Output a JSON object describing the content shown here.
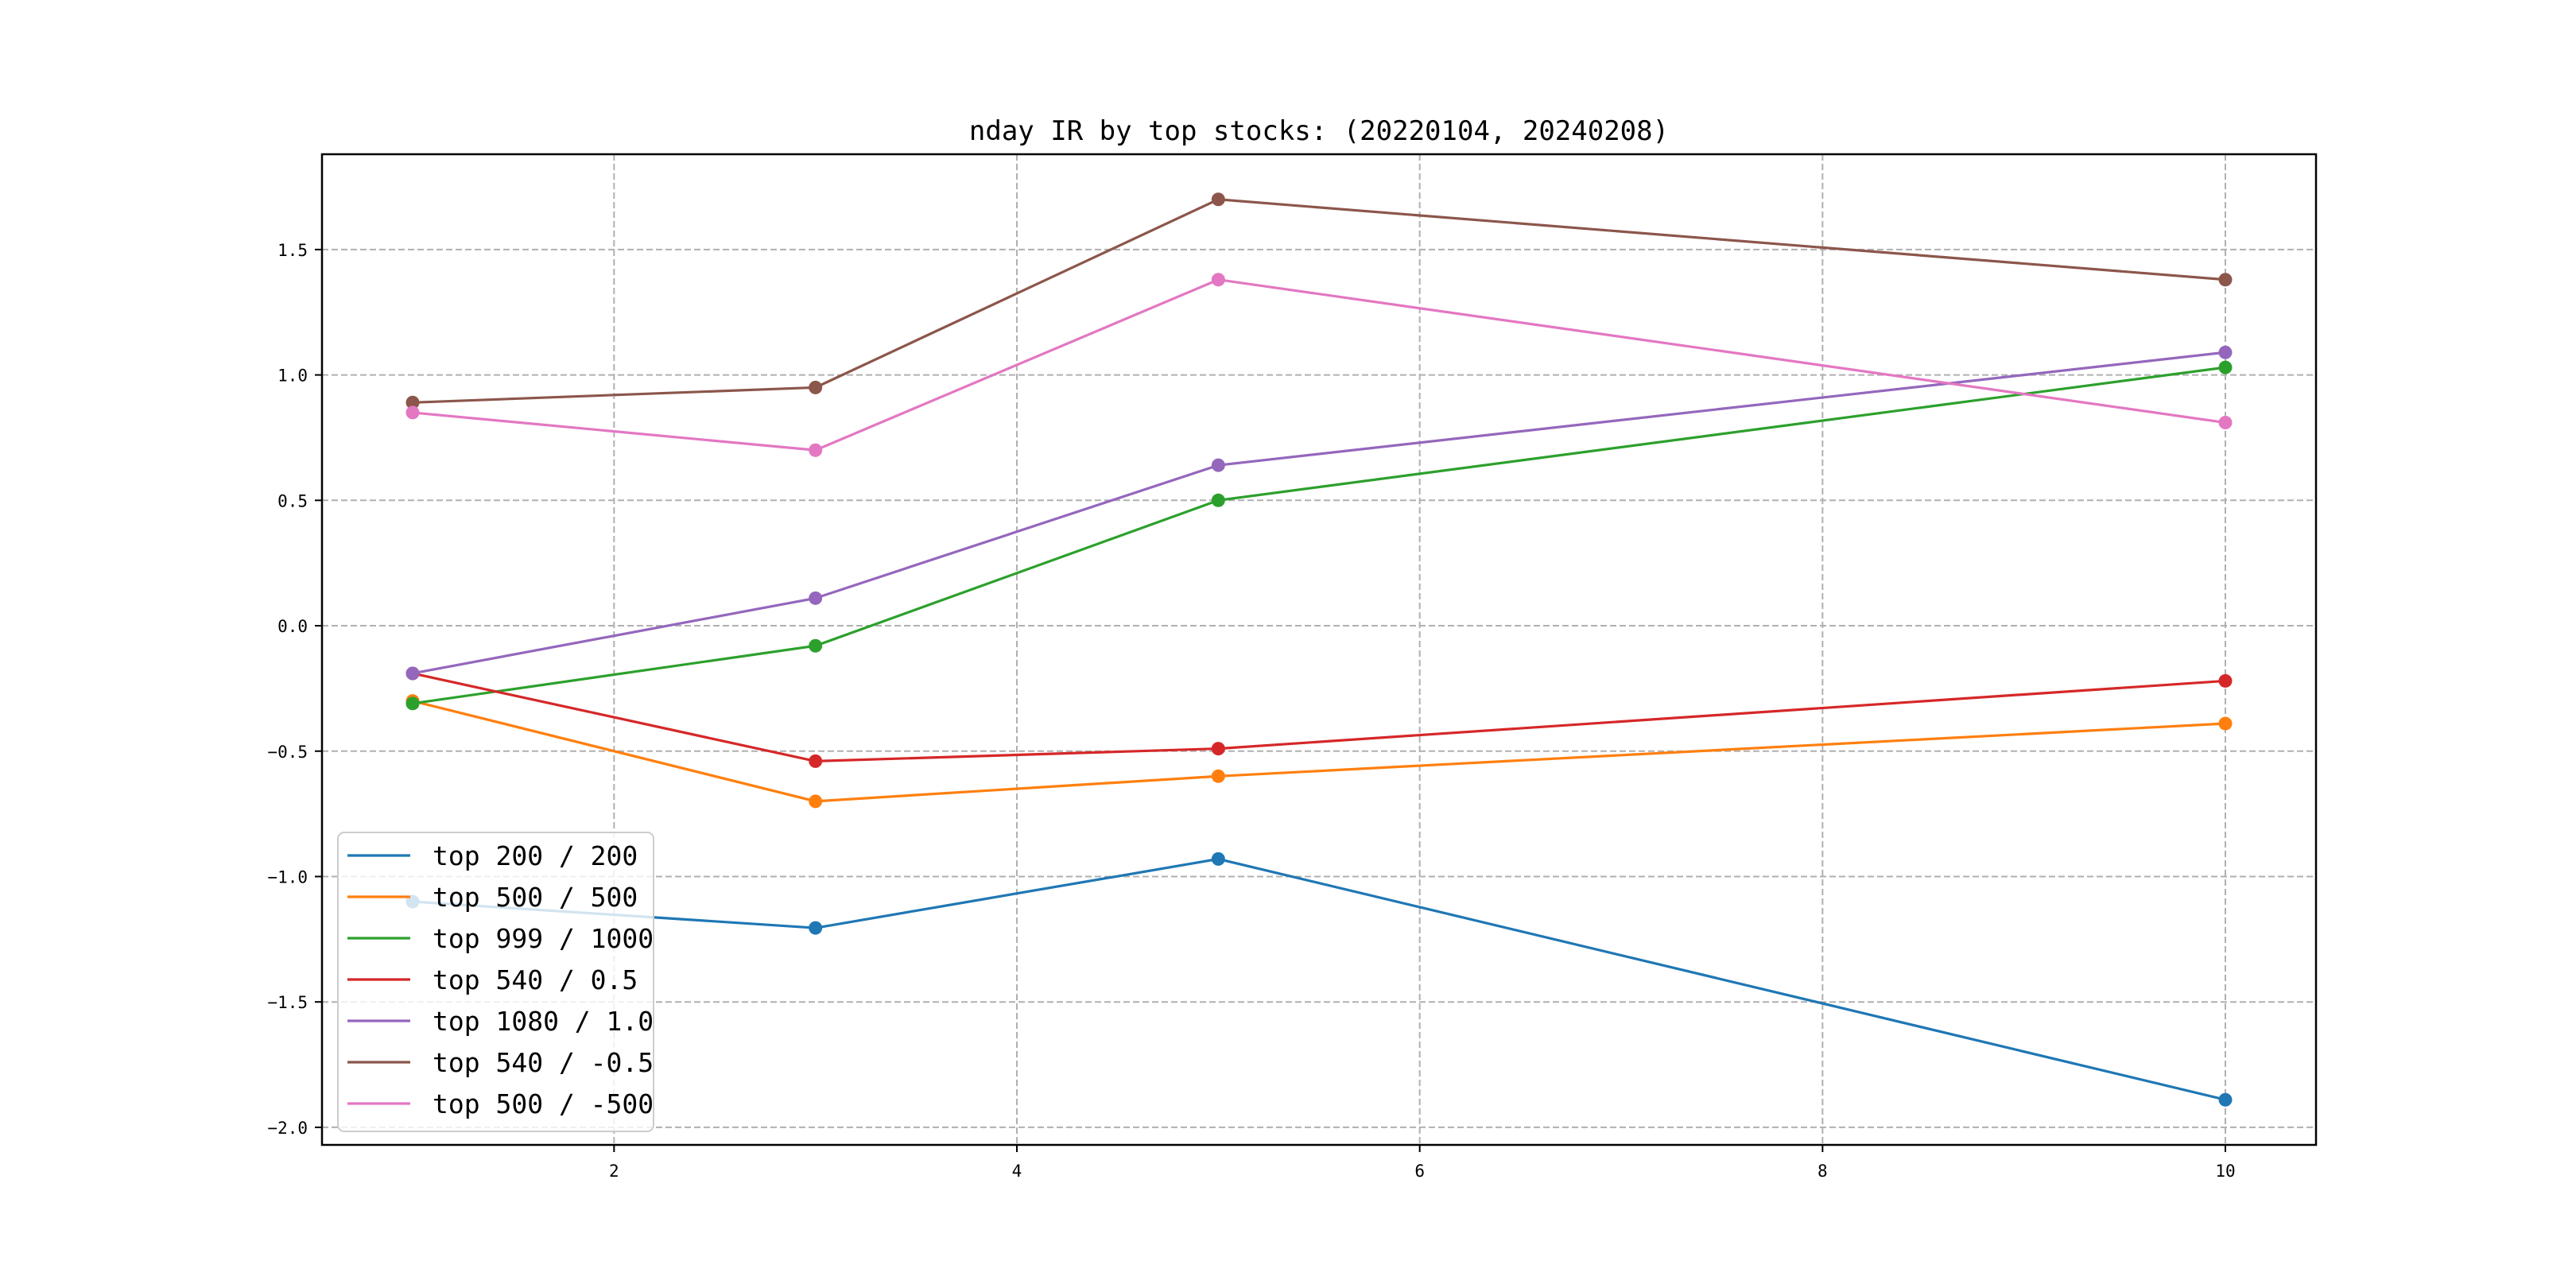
{
  "chart_data": {
    "type": "line",
    "title": "nday IR by top stocks: (20220104, 20240208)",
    "xlabel": "",
    "ylabel": "",
    "x": [
      1,
      3,
      5,
      10
    ],
    "xlim": [
      0.55,
      10.45
    ],
    "ylim": [
      -2.07,
      1.88
    ],
    "xticks": [
      2,
      4,
      6,
      8,
      10
    ],
    "xtick_labels": [
      "2",
      "4",
      "6",
      "8",
      "10"
    ],
    "yticks": [
      -2.0,
      -1.5,
      -1.0,
      -0.5,
      0.0,
      0.5,
      1.0,
      1.5
    ],
    "ytick_labels": [
      "−2.0",
      "−1.5",
      "−1.0",
      "−0.5",
      "0.0",
      "0.5",
      "1.0",
      "1.5"
    ],
    "grid": true,
    "legend_position": "lower-left",
    "series": [
      {
        "name": "top 200 / 200",
        "color": "#1f77b4",
        "values": [
          -1.1,
          -1.205,
          -0.93,
          -1.89
        ]
      },
      {
        "name": "top 500 / 500",
        "color": "#ff7f0e",
        "values": [
          -0.3,
          -0.7,
          -0.6,
          -0.39
        ]
      },
      {
        "name": "top 999 / 1000",
        "color": "#2ca02c",
        "values": [
          -0.31,
          -0.08,
          0.5,
          1.03
        ]
      },
      {
        "name": "top 540 / 0.5",
        "color": "#d62728",
        "values": [
          -0.19,
          -0.54,
          -0.49,
          -0.22
        ]
      },
      {
        "name": "top 1080 / 1.0",
        "color": "#9467bd",
        "values": [
          -0.19,
          0.11,
          0.64,
          1.09
        ]
      },
      {
        "name": "top 540 / -0.5",
        "color": "#8c564b",
        "values": [
          0.89,
          0.95,
          1.7,
          1.38
        ]
      },
      {
        "name": "top 500 / -500",
        "color": "#e377c2",
        "values": [
          0.85,
          0.7,
          1.38,
          0.81
        ]
      }
    ]
  }
}
